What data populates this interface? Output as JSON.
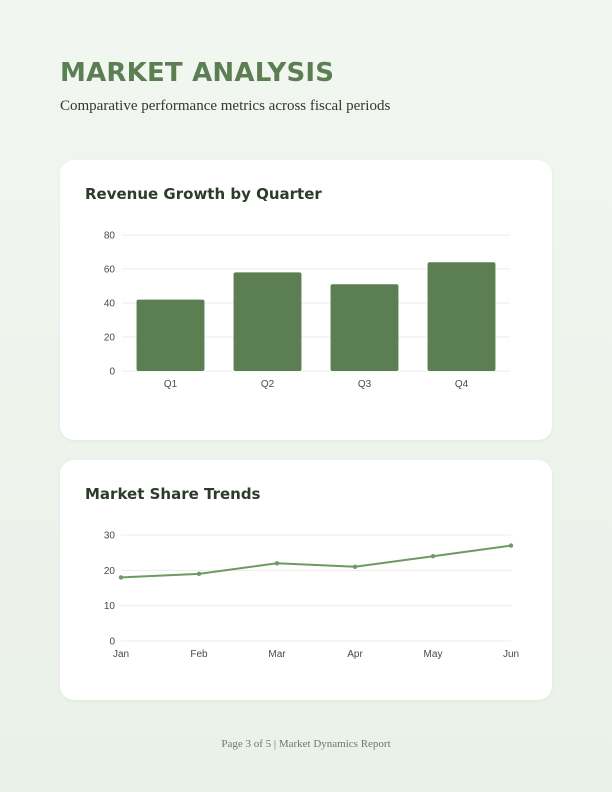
{
  "header": {
    "title": "MARKET ANALYSIS",
    "subtitle": "Comparative performance metrics across fiscal periods"
  },
  "charts": {
    "revenue_title": "Revenue Growth by Quarter",
    "market_title": "Market Share Trends"
  },
  "footer": {
    "text": "Page 3 of 5 | Market Dynamics Report"
  },
  "colors": {
    "accent": "#5b7f52",
    "line": "#6d9962"
  },
  "chart_data": [
    {
      "type": "bar",
      "title": "Revenue Growth by Quarter",
      "categories": [
        "Q1",
        "Q2",
        "Q3",
        "Q4"
      ],
      "values": [
        42,
        58,
        51,
        64
      ],
      "ylim": [
        0,
        80
      ],
      "yticks": [
        0,
        20,
        40,
        60,
        80
      ],
      "grid": true
    },
    {
      "type": "line",
      "title": "Market Share Trends",
      "categories": [
        "Jan",
        "Feb",
        "Mar",
        "Apr",
        "May",
        "Jun"
      ],
      "values": [
        18,
        19,
        22,
        21,
        24,
        27
      ],
      "ylim": [
        0,
        30
      ],
      "yticks": [
        0,
        10,
        20,
        30
      ],
      "grid": true
    }
  ]
}
